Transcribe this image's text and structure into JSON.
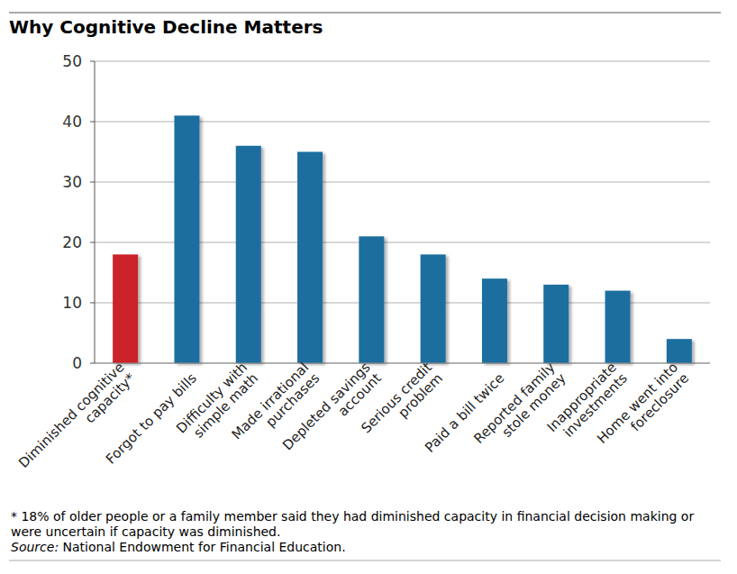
{
  "chart_data": {
    "type": "bar",
    "title": "Why Cognitive Decline Matters",
    "categories": [
      "Diminished cognitive capacity*",
      "Forgot to pay bills",
      "Difficulty with simple math",
      "Made irrational purchases",
      "Depleted savings account",
      "Serious credit problem",
      "Paid a bill twice",
      "Reported family stole money",
      "Inappropriate investments",
      "Home went into foreclosure"
    ],
    "values": [
      18,
      41,
      36,
      35,
      21,
      18,
      14,
      13,
      12,
      4
    ],
    "colors": [
      "#cc2229",
      "#1c6e9f",
      "#1c6e9f",
      "#1c6e9f",
      "#1c6e9f",
      "#1c6e9f",
      "#1c6e9f",
      "#1c6e9f",
      "#1c6e9f",
      "#1c6e9f"
    ],
    "ylim": [
      0,
      50
    ],
    "yticks": [
      0,
      10,
      20,
      30,
      40,
      50
    ],
    "grid": true,
    "footnote": "* 18% of older people or a family member said they had diminished capacity in financial decision making or were uncertain if capacity was diminished.",
    "source_label": "Source:",
    "source": "National Endowment for Financial Education."
  }
}
